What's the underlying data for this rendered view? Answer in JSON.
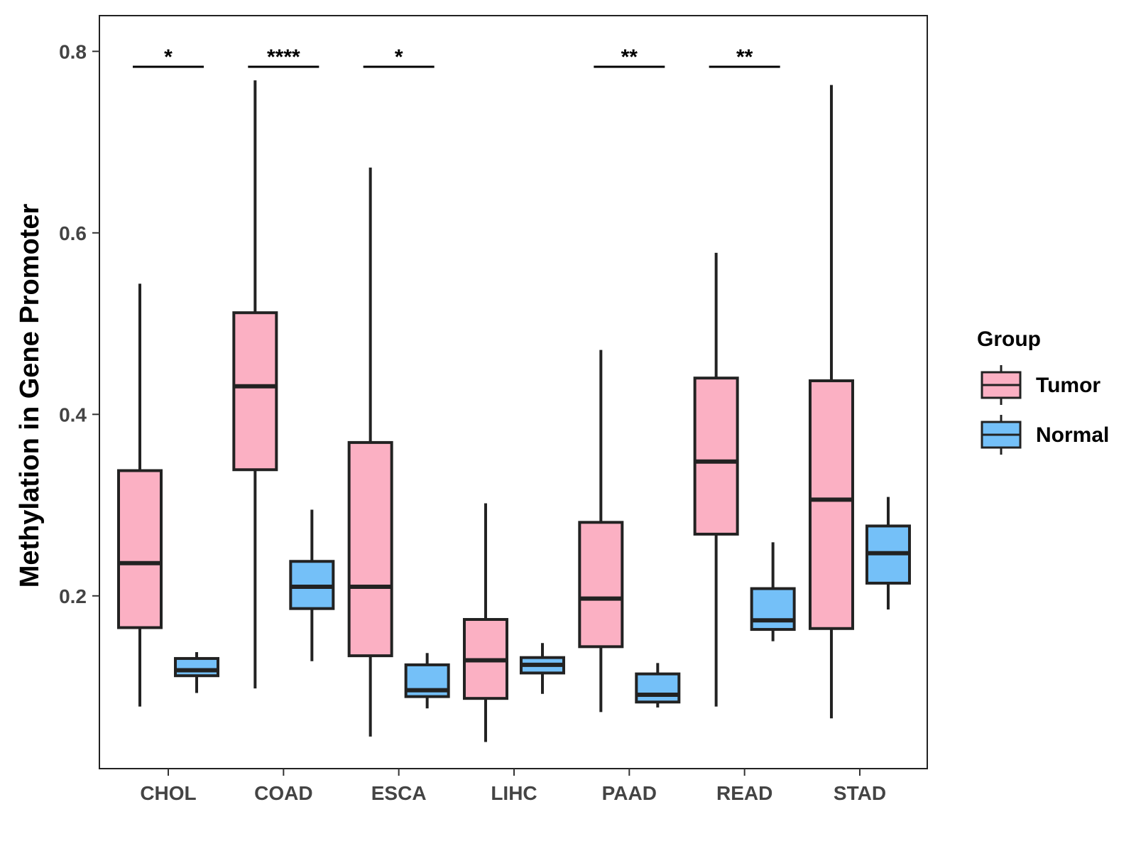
{
  "chart_data": {
    "type": "boxplot",
    "title": "",
    "xlabel": "",
    "ylabel": "Methylation in Gene Promoter",
    "ylim": [
      0.0,
      0.83
    ],
    "yticks": [
      "0.2",
      "0.4",
      "0.6",
      "0.8"
    ],
    "ytick_values": [
      0.2,
      0.4,
      0.6,
      0.8
    ],
    "grid": false,
    "legend": {
      "title": "Group",
      "position": "right",
      "entries": [
        {
          "name": "Tumor",
          "color": "#FBB0C3"
        },
        {
          "name": "Normal",
          "color": "#74C0F8"
        }
      ]
    },
    "categories": [
      "CHOL",
      "COAD",
      "ESCA",
      "LIHC",
      "PAAD",
      "READ",
      "STAD"
    ],
    "series": [
      {
        "name": "Tumor",
        "color": "#FBB0C3",
        "boxes": [
          {
            "whisker_low": 0.078,
            "q1": 0.165,
            "median": 0.236,
            "q3": 0.338,
            "whisker_high": 0.544
          },
          {
            "whisker_low": 0.098,
            "q1": 0.339,
            "median": 0.431,
            "q3": 0.512,
            "whisker_high": 0.768
          },
          {
            "whisker_low": 0.045,
            "q1": 0.134,
            "median": 0.21,
            "q3": 0.369,
            "whisker_high": 0.672
          },
          {
            "whisker_low": 0.039,
            "q1": 0.087,
            "median": 0.129,
            "q3": 0.174,
            "whisker_high": 0.302
          },
          {
            "whisker_low": 0.072,
            "q1": 0.144,
            "median": 0.197,
            "q3": 0.281,
            "whisker_high": 0.471
          },
          {
            "whisker_low": 0.078,
            "q1": 0.268,
            "median": 0.348,
            "q3": 0.44,
            "whisker_high": 0.578
          },
          {
            "whisker_low": 0.065,
            "q1": 0.164,
            "median": 0.306,
            "q3": 0.437,
            "whisker_high": 0.763
          }
        ]
      },
      {
        "name": "Normal",
        "color": "#74C0F8",
        "boxes": [
          {
            "whisker_low": 0.093,
            "q1": 0.112,
            "median": 0.118,
            "q3": 0.131,
            "whisker_high": 0.138
          },
          {
            "whisker_low": 0.128,
            "q1": 0.186,
            "median": 0.21,
            "q3": 0.238,
            "whisker_high": 0.295
          },
          {
            "whisker_low": 0.076,
            "q1": 0.089,
            "median": 0.096,
            "q3": 0.124,
            "whisker_high": 0.137
          },
          {
            "whisker_low": 0.092,
            "q1": 0.115,
            "median": 0.124,
            "q3": 0.132,
            "whisker_high": 0.148
          },
          {
            "whisker_low": 0.077,
            "q1": 0.083,
            "median": 0.091,
            "q3": 0.114,
            "whisker_high": 0.126
          },
          {
            "whisker_low": 0.15,
            "q1": 0.163,
            "median": 0.173,
            "q3": 0.208,
            "whisker_high": 0.259
          },
          {
            "whisker_low": 0.185,
            "q1": 0.214,
            "median": 0.247,
            "q3": 0.277,
            "whisker_high": 0.309
          }
        ]
      }
    ],
    "significance": [
      {
        "category": "CHOL",
        "label": "*",
        "y": 0.783
      },
      {
        "category": "COAD",
        "label": "****",
        "y": 0.783
      },
      {
        "category": "ESCA",
        "label": "*",
        "y": 0.783
      },
      {
        "category": "PAAD",
        "label": "**",
        "y": 0.783
      },
      {
        "category": "READ",
        "label": "**",
        "y": 0.783
      }
    ]
  }
}
